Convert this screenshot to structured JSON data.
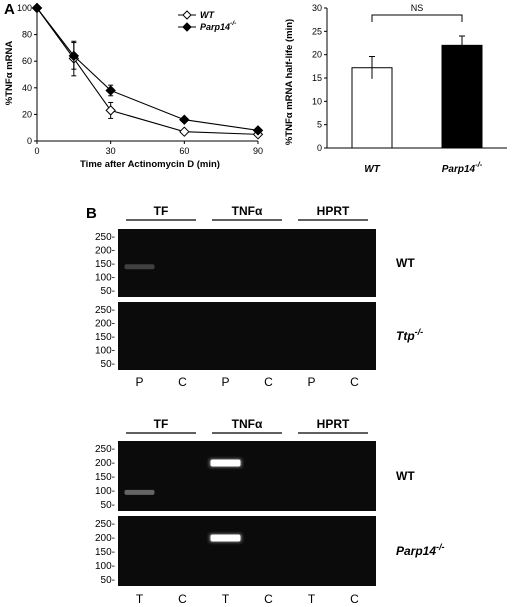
{
  "panel_a_label": "A",
  "panel_b_label": "B",
  "chart_data": [
    {
      "type": "line",
      "xlabel": "Time after Actinomycin D (min)",
      "ylabel": "%TNFα mRNA",
      "xlim": [
        0,
        90
      ],
      "ylim": [
        0,
        100
      ],
      "x": [
        0,
        15,
        30,
        60,
        90
      ],
      "xticks": [
        0,
        30,
        60,
        90
      ],
      "yticks": [
        0,
        20,
        40,
        60,
        80,
        100
      ],
      "legend_position": "top-right",
      "series": [
        {
          "name": "WT",
          "marker": "open-diamond",
          "values": [
            100,
            62,
            23,
            7,
            5
          ],
          "errors": [
            0,
            13,
            6,
            1,
            1
          ]
        },
        {
          "name": "Parp14-/-",
          "marker": "filled-diamond",
          "values": [
            100,
            64,
            38,
            16,
            8
          ],
          "errors": [
            0,
            10,
            4,
            1.5,
            1
          ]
        }
      ]
    },
    {
      "type": "bar",
      "ylabel": "%TNFα mRNA half-life (min)",
      "ylim": [
        0,
        30
      ],
      "yticks": [
        0,
        5,
        10,
        15,
        20,
        25,
        30
      ],
      "categories": [
        "WT",
        "Parp14-/-"
      ],
      "values": [
        17.2,
        22
      ],
      "errors": [
        2.4,
        2
      ],
      "bar_colors": [
        "#ffffff",
        "#000000"
      ],
      "annotation": "NS"
    }
  ],
  "gels": {
    "ladder_labels": [
      "250-",
      "200-",
      "150-",
      "100-",
      "50-"
    ],
    "top": {
      "headers": [
        "TF",
        "TNFα",
        "HPRT"
      ],
      "lanes": [
        "P",
        "C",
        "P",
        "C",
        "P",
        "C"
      ],
      "genotypes": [
        {
          "base": "WT",
          "sup": ""
        },
        {
          "base": "Ttp",
          "sup": "-/-"
        }
      ]
    },
    "bottom": {
      "headers": [
        "TF",
        "TNFα",
        "HPRT"
      ],
      "lanes": [
        "T",
        "C",
        "T",
        "C",
        "T",
        "C"
      ],
      "genotypes": [
        {
          "base": "WT",
          "sup": ""
        },
        {
          "base": "Parp14",
          "sup": "-/-"
        }
      ]
    }
  }
}
